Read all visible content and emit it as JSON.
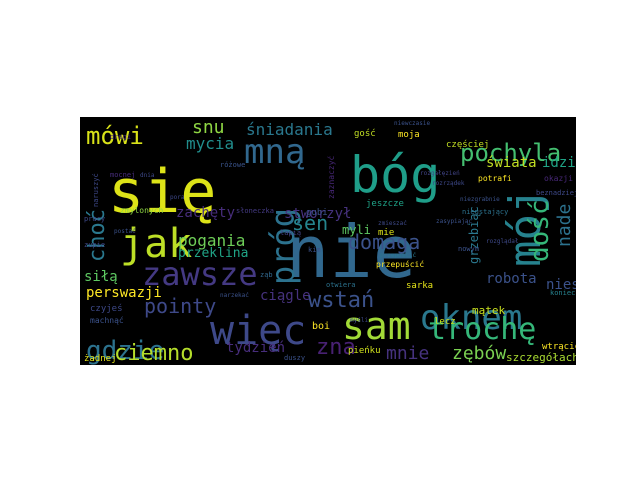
{
  "figure": {
    "description_words": [
      {
        "text": "się",
        "color": "#dde318",
        "angle": 0
      },
      {
        "text": "nie",
        "color": "#31688e",
        "angle": 0
      },
      {
        "text": "bóg",
        "color": "#1f9e89",
        "angle": 0
      },
      {
        "text": "mój",
        "color": "#26828e",
        "angle": -90
      },
      {
        "text": "jak",
        "color": "#bddf26",
        "angle": 0
      },
      {
        "text": "sam",
        "color": "#a2da37",
        "angle": 0
      },
      {
        "text": "oknem",
        "color": "#2a788e",
        "angle": 0
      },
      {
        "text": "trochę",
        "color": "#35b779",
        "angle": 0
      },
      {
        "text": "więc",
        "color": "#3e4989",
        "angle": 0
      },
      {
        "text": "zawsze",
        "color": "#443983",
        "angle": 0
      },
      {
        "text": "gdzie",
        "color": "#2c728e",
        "angle": 0
      },
      {
        "text": "mną",
        "color": "#31688e",
        "angle": 0
      },
      {
        "text": "próg",
        "color": "#2c728e",
        "angle": -90
      },
      {
        "text": "dość",
        "color": "#35b779",
        "angle": -90
      },
      {
        "text": "pochyla",
        "color": "#44bf70",
        "angle": 0
      },
      {
        "text": "mówi",
        "color": "#d8e219",
        "angle": 0
      },
      {
        "text": "domaga",
        "color": "#3b528b",
        "angle": 0
      },
      {
        "text": "wstań",
        "color": "#3b528b",
        "angle": 0
      },
      {
        "text": "ciemno",
        "color": "#b5de2b",
        "angle": 0
      },
      {
        "text": "pointy",
        "color": "#3e4989",
        "angle": 0
      },
      {
        "text": "choć",
        "color": "#2a788e",
        "angle": -90
      },
      {
        "text": "nade",
        "color": "#2c728e",
        "angle": -90
      },
      {
        "text": "sen",
        "color": "#25858e",
        "angle": 0
      },
      {
        "text": "snu",
        "color": "#8fd744",
        "angle": 0
      },
      {
        "text": "mycia",
        "color": "#218e8d",
        "angle": 0
      },
      {
        "text": "śniadania",
        "color": "#2a788e",
        "angle": 0
      },
      {
        "text": "mnie",
        "color": "#46327e",
        "angle": 0
      },
      {
        "text": "zębów",
        "color": "#7ad151",
        "angle": 0
      },
      {
        "text": "zna",
        "color": "#482173",
        "angle": 0
      },
      {
        "text": "stworzył",
        "color": "#46327e",
        "angle": 0
      },
      {
        "text": "pogania",
        "color": "#6ece58",
        "angle": 0
      },
      {
        "text": "siłą",
        "color": "#5ec962",
        "angle": 0
      },
      {
        "text": "świata",
        "color": "#c2df23",
        "angle": 0
      },
      {
        "text": "idzie",
        "color": "#20a486",
        "angle": 0
      },
      {
        "text": "zachęty",
        "color": "#472d7b",
        "angle": 0
      },
      {
        "text": "przeklina",
        "color": "#20a486",
        "angle": 0
      },
      {
        "text": "ciągle",
        "color": "#46327e",
        "angle": 0
      },
      {
        "text": "perswazji",
        "color": "#fde725",
        "angle": 0
      },
      {
        "text": "tydzień",
        "color": "#472d7b",
        "angle": 0
      },
      {
        "text": "robota",
        "color": "#3b528b",
        "angle": 0
      },
      {
        "text": "niesporo",
        "color": "#3b528b",
        "angle": 0
      },
      {
        "text": "myli",
        "color": "#5ec962",
        "angle": 0
      },
      {
        "text": "grzebiąc",
        "color": "#2a788e",
        "angle": -90
      },
      {
        "text": "mątek",
        "color": "#cae11f",
        "angle": 0
      },
      {
        "text": "szczegółach",
        "color": "#aadc32",
        "angle": 0
      },
      {
        "text": "gubi",
        "color": "#3b528b",
        "angle": 0
      },
      {
        "text": "jeszcze",
        "color": "#1fa287",
        "angle": 0
      },
      {
        "text": "zaznaczyć",
        "color": "#482878",
        "angle": -90
      },
      {
        "text": "drogi",
        "color": "#482878",
        "angle": 0
      },
      {
        "text": "różowe",
        "color": "#3a548c",
        "angle": 0
      },
      {
        "text": "słoneczka",
        "color": "#443a83",
        "angle": 0
      },
      {
        "text": "czyjeś",
        "color": "#3e4989",
        "angle": 0
      },
      {
        "text": "kim",
        "color": "#3b528b",
        "angle": 0
      },
      {
        "text": "łapią",
        "color": "#414487",
        "angle": 0
      },
      {
        "text": "ząb",
        "color": "#31688e",
        "angle": 0
      },
      {
        "text": "zmylonych",
        "color": "#8fd744",
        "angle": 0
      },
      {
        "text": "mocnej",
        "color": "#472d7b",
        "angle": 0
      },
      {
        "text": "przepuścić",
        "color": "#fde725",
        "angle": 0
      },
      {
        "text": "mie",
        "color": "#dde318",
        "angle": 0
      },
      {
        "text": "otwiera",
        "color": "#2c728e",
        "angle": 0
      },
      {
        "text": "żadnej",
        "color": "#e5e419",
        "angle": 0
      },
      {
        "text": "boi",
        "color": "#fde725",
        "angle": 0
      },
      {
        "text": "pieńku",
        "color": "#d0e11c",
        "angle": 0
      },
      {
        "text": "nowym",
        "color": "#3b528b",
        "angle": 0
      },
      {
        "text": "wtrącić",
        "color": "#fde725",
        "angle": 0
      },
      {
        "text": "koniec",
        "color": "#26828e",
        "angle": 0
      },
      {
        "text": "lecz",
        "color": "#d0e11c",
        "angle": 0
      },
      {
        "text": "sarka",
        "color": "#e5e419",
        "angle": 0
      },
      {
        "text": "moja",
        "color": "#fde725",
        "angle": 0
      },
      {
        "text": "gość",
        "color": "#c2df23",
        "angle": 0
      },
      {
        "text": "częściej",
        "color": "#c2df23",
        "angle": 0
      },
      {
        "text": "potrafi",
        "color": "#fde725",
        "angle": 0
      },
      {
        "text": "niewczasie",
        "color": "#3b528b",
        "angle": 0
      },
      {
        "text": "okazji",
        "color": "#482878",
        "angle": 0
      },
      {
        "text": "rozrządek",
        "color": "#3e4989",
        "angle": 0
      },
      {
        "text": "przepuścić",
        "color": "#2a788e",
        "angle": 0
      },
      {
        "text": "rozgałęzień",
        "color": "#414487",
        "angle": 0
      },
      {
        "text": "niezgrabnie",
        "color": "#3b528b",
        "angle": 0
      },
      {
        "text": "beznadziejny",
        "color": "#3e4989",
        "angle": 0
      },
      {
        "text": "nieustający",
        "color": "#2c728e",
        "angle": 0
      },
      {
        "text": "rozglądał",
        "color": "#3e4989",
        "angle": 0
      },
      {
        "text": "zasypiając",
        "color": "#3b528b",
        "angle": 0
      },
      {
        "text": "zmieszać",
        "color": "#3e4989",
        "angle": 0
      },
      {
        "text": "pora",
        "color": "#3e4989",
        "angle": 0
      },
      {
        "text": "postać",
        "color": "#3b528b",
        "angle": 0
      },
      {
        "text": "naruszyć",
        "color": "#3e4989",
        "angle": -90
      },
      {
        "text": "pracy",
        "color": "#3e4989",
        "angle": 0
      },
      {
        "text": "zupie",
        "color": "#3e4989",
        "angle": 0
      },
      {
        "text": "narzekać",
        "color": "#3b528b",
        "angle": 0
      },
      {
        "text": "machnąć",
        "color": "#3b528b",
        "angle": 0
      },
      {
        "text": "duszy",
        "color": "#3b528b",
        "angle": 0
      },
      {
        "text": "dnia",
        "color": "#3e4989",
        "angle": 0
      },
      {
        "text": "myśli",
        "color": "#3e4989",
        "angle": 0
      }
    ]
  }
}
